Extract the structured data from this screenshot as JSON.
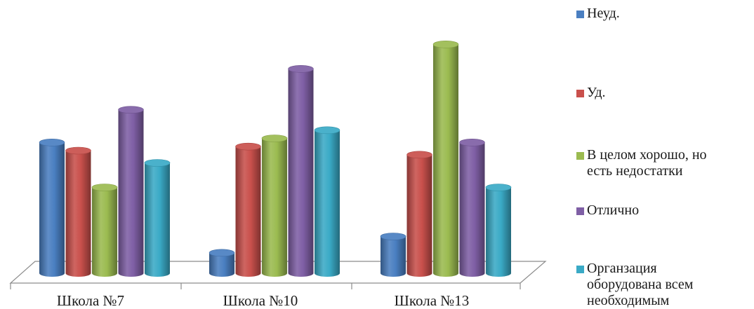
{
  "chart_data": {
    "type": "bar",
    "style": "3d-cylinder",
    "categories": [
      "Школа №7",
      "Школа №10",
      "Школа №13"
    ],
    "series": [
      {
        "name": "Неуд.",
        "color": "#4a7fc1",
        "values": [
          32,
          5,
          9
        ]
      },
      {
        "name": "Уд.",
        "color": "#c9504c",
        "values": [
          30,
          31,
          29
        ]
      },
      {
        "name": "В целом хорошо, но\nесть недостатки",
        "color": "#9bbb50",
        "values": [
          21,
          33,
          56
        ]
      },
      {
        "name": "Отлично",
        "color": "#7f5fa5",
        "values": [
          40,
          50,
          32
        ]
      },
      {
        "name": "Органзация\nоборудована всем\nнеобходимым",
        "color": "#3aaac6",
        "values": [
          27,
          35,
          21
        ]
      }
    ],
    "ylim": [
      0,
      60
    ],
    "grid": false,
    "legend_position": "right"
  }
}
